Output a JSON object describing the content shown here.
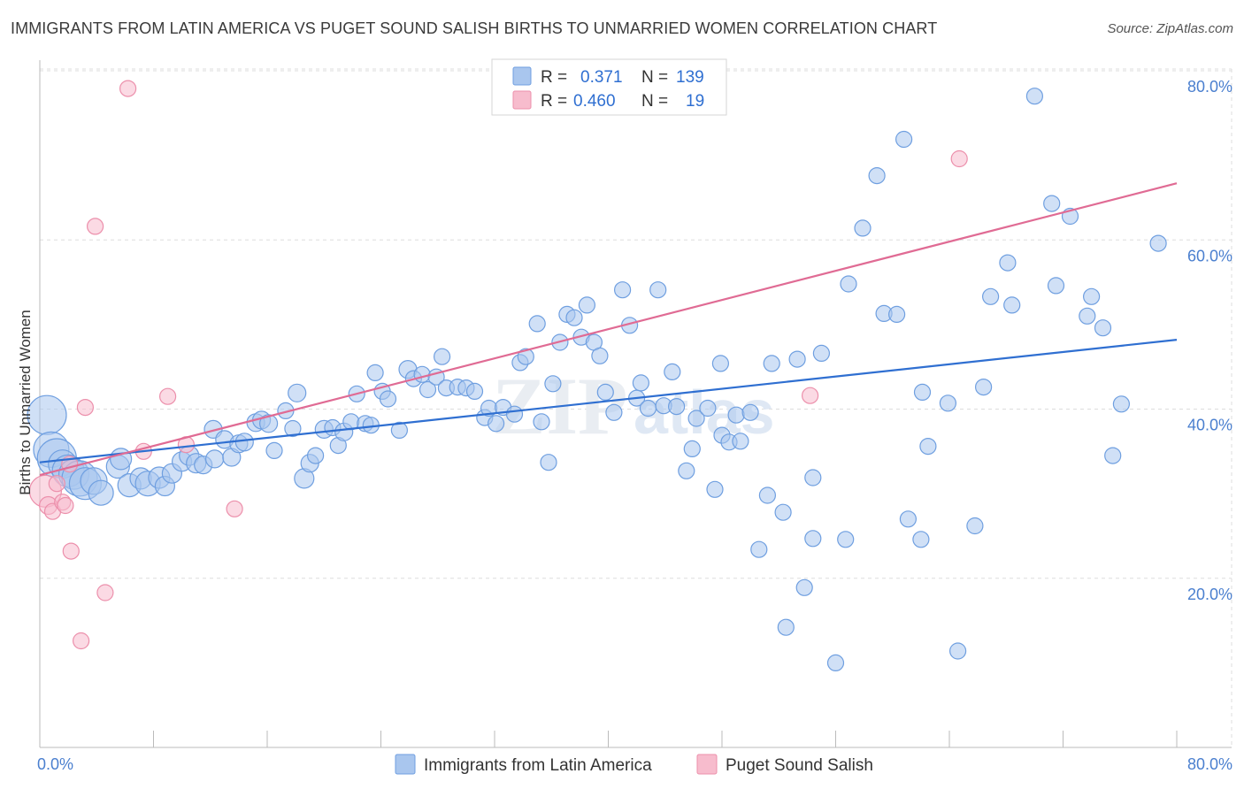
{
  "title": "IMMIGRANTS FROM LATIN AMERICA VS PUGET SOUND SALISH BIRTHS TO UNMARRIED WOMEN CORRELATION CHART",
  "source": "Source: ZipAtlas.com",
  "watermark": {
    "zip": "ZIP",
    "atlas": "atlas"
  },
  "colors": {
    "blue_fill": "#a9c6ee",
    "blue_stroke": "#6f9fe0",
    "blue_line": "#2f6fd1",
    "pink_fill": "#f7bccd",
    "pink_stroke": "#ec8fab",
    "pink_line": "#e06b94",
    "grid": "#dddddd",
    "tick_text": "#4a7fcf"
  },
  "legend": {
    "rows": [
      {
        "r_label": "R =",
        "r_value": "0.371",
        "n_label": "N =",
        "n_value": "139"
      },
      {
        "r_label": "R =",
        "r_value": "0.460",
        "n_label": "N =",
        "n_value": "19"
      }
    ]
  },
  "bottom_legend": [
    "Immigrants from Latin America",
    "Puget Sound Salish"
  ],
  "chart_data": {
    "type": "scatter",
    "title": "IMMIGRANTS FROM LATIN AMERICA VS PUGET SOUND SALISH BIRTHS TO UNMARRIED WOMEN CORRELATION CHART",
    "xlabel": "",
    "ylabel": "Births to Unmarried Women",
    "xlim": [
      0,
      80
    ],
    "ylim": [
      0,
      82
    ],
    "x_tick_labels": [
      "0.0%",
      "80.0%"
    ],
    "y_ticks": [
      20,
      40,
      60,
      80
    ],
    "y_tick_labels": [
      "20.0%",
      "40.0%",
      "60.0%",
      "80.0%"
    ],
    "grid": true,
    "legend_position": "top-center",
    "series": [
      {
        "name": "Immigrants from Latin America",
        "color": "#a9c6ee",
        "stats": {
          "R": 0.371,
          "N": 139
        },
        "trend": {
          "x": [
            0,
            80
          ],
          "y": [
            33.7,
            48.2
          ]
        },
        "points": [
          [
            0.5,
            39.3,
            22
          ],
          [
            0.8,
            35.2,
            20
          ],
          [
            1.2,
            34.2,
            22
          ],
          [
            1.6,
            33.5,
            16
          ],
          [
            2.0,
            32.7,
            18
          ],
          [
            2.4,
            32.3,
            17
          ],
          [
            2.8,
            31.8,
            20
          ],
          [
            3.2,
            31.2,
            18
          ],
          [
            3.8,
            31.5,
            15
          ],
          [
            4.3,
            30.1,
            14
          ],
          [
            5.5,
            33.2,
            13
          ],
          [
            5.7,
            34.1,
            12
          ],
          [
            6.3,
            31.0,
            13
          ],
          [
            7.1,
            31.8,
            12
          ],
          [
            7.6,
            31.2,
            14
          ],
          [
            8.4,
            31.9,
            12
          ],
          [
            8.8,
            30.9,
            11
          ],
          [
            9.3,
            32.4,
            11
          ],
          [
            10.0,
            33.8,
            11
          ],
          [
            10.5,
            34.5,
            11
          ],
          [
            11.0,
            33.6,
            11
          ],
          [
            11.5,
            33.4,
            10
          ],
          [
            12.2,
            37.6,
            10
          ],
          [
            12.3,
            34.1,
            10
          ],
          [
            13.0,
            36.4,
            10
          ],
          [
            13.5,
            34.3,
            10
          ],
          [
            14.0,
            35.9,
            10
          ],
          [
            14.4,
            36.1,
            10
          ],
          [
            15.2,
            38.4,
            10
          ],
          [
            15.6,
            38.7,
            10
          ],
          [
            16.1,
            38.3,
            10
          ],
          [
            16.5,
            35.1,
            9
          ],
          [
            17.3,
            39.8,
            9
          ],
          [
            17.8,
            37.7,
            9
          ],
          [
            18.1,
            41.9,
            10
          ],
          [
            18.6,
            31.8,
            11
          ],
          [
            19.0,
            33.6,
            10
          ],
          [
            19.4,
            34.5,
            9
          ],
          [
            20.0,
            37.6,
            10
          ],
          [
            20.6,
            37.8,
            9
          ],
          [
            21.0,
            35.7,
            9
          ],
          [
            21.4,
            37.3,
            10
          ],
          [
            21.9,
            38.5,
            9
          ],
          [
            22.3,
            41.8,
            9
          ],
          [
            22.9,
            38.3,
            9
          ],
          [
            23.3,
            38.1,
            9
          ],
          [
            23.6,
            44.3,
            9
          ],
          [
            24.1,
            42.1,
            9
          ],
          [
            24.5,
            41.2,
            9
          ],
          [
            25.3,
            37.5,
            9
          ],
          [
            25.9,
            44.7,
            10
          ],
          [
            26.3,
            43.6,
            9
          ],
          [
            26.9,
            44.1,
            9
          ],
          [
            27.3,
            42.3,
            9
          ],
          [
            27.9,
            43.8,
            9
          ],
          [
            28.3,
            46.2,
            9
          ],
          [
            28.6,
            42.5,
            9
          ],
          [
            29.4,
            42.6,
            9
          ],
          [
            30.0,
            42.5,
            9
          ],
          [
            30.6,
            42.1,
            9
          ],
          [
            31.3,
            39.0,
            9
          ],
          [
            31.6,
            40.1,
            9
          ],
          [
            32.1,
            38.3,
            9
          ],
          [
            32.6,
            40.2,
            9
          ],
          [
            33.4,
            39.4,
            9
          ],
          [
            33.8,
            45.5,
            9
          ],
          [
            34.2,
            46.2,
            9
          ],
          [
            35.0,
            50.1,
            9
          ],
          [
            35.3,
            38.5,
            9
          ],
          [
            35.8,
            33.7,
            9
          ],
          [
            36.1,
            43.0,
            9
          ],
          [
            36.6,
            47.9,
            9
          ],
          [
            37.1,
            51.2,
            9
          ],
          [
            37.6,
            50.8,
            9
          ],
          [
            38.1,
            48.5,
            9
          ],
          [
            38.5,
            52.3,
            9
          ],
          [
            39.0,
            47.9,
            9
          ],
          [
            39.4,
            46.3,
            9
          ],
          [
            39.8,
            42.0,
            9
          ],
          [
            40.4,
            39.6,
            9
          ],
          [
            41.0,
            54.1,
            9
          ],
          [
            41.5,
            49.9,
            9
          ],
          [
            42.0,
            41.3,
            9
          ],
          [
            42.3,
            43.1,
            9
          ],
          [
            42.8,
            40.1,
            9
          ],
          [
            43.5,
            54.1,
            9
          ],
          [
            43.9,
            40.4,
            9
          ],
          [
            44.5,
            44.4,
            9
          ],
          [
            44.8,
            40.3,
            9
          ],
          [
            45.5,
            32.7,
            9
          ],
          [
            45.9,
            35.3,
            9
          ],
          [
            46.2,
            38.9,
            9
          ],
          [
            47.0,
            40.1,
            9
          ],
          [
            47.5,
            30.5,
            9
          ],
          [
            48.0,
            36.9,
            9
          ],
          [
            48.5,
            36.1,
            9
          ],
          [
            49.0,
            39.3,
            9
          ],
          [
            49.3,
            36.2,
            9
          ],
          [
            50.0,
            39.6,
            9
          ],
          [
            50.6,
            23.4,
            9
          ],
          [
            51.2,
            29.8,
            9
          ],
          [
            51.5,
            45.4,
            9
          ],
          [
            52.3,
            27.8,
            9
          ],
          [
            52.5,
            14.2,
            9
          ],
          [
            53.3,
            45.9,
            9
          ],
          [
            53.8,
            18.9,
            9
          ],
          [
            54.4,
            24.7,
            9
          ],
          [
            54.4,
            31.9,
            9
          ],
          [
            55.0,
            46.6,
            9
          ],
          [
            56.0,
            10.0,
            9
          ],
          [
            56.7,
            24.6,
            9
          ],
          [
            56.9,
            54.8,
            9
          ],
          [
            57.9,
            61.4,
            9
          ],
          [
            58.9,
            67.6,
            9
          ],
          [
            59.4,
            51.3,
            9
          ],
          [
            60.3,
            51.2,
            9
          ],
          [
            60.8,
            71.9,
            9
          ],
          [
            61.1,
            27.0,
            9
          ],
          [
            62.0,
            24.6,
            9
          ],
          [
            62.5,
            35.6,
            9
          ],
          [
            63.9,
            40.7,
            9
          ],
          [
            64.6,
            11.4,
            9
          ],
          [
            65.8,
            26.2,
            9
          ],
          [
            66.4,
            42.6,
            9
          ],
          [
            66.9,
            53.3,
            9
          ],
          [
            68.1,
            57.3,
            9
          ],
          [
            68.4,
            52.3,
            9
          ],
          [
            70.0,
            77.0,
            9
          ],
          [
            71.2,
            64.3,
            9
          ],
          [
            71.5,
            54.6,
            9
          ],
          [
            72.5,
            62.8,
            9
          ],
          [
            73.7,
            51.0,
            9
          ],
          [
            74.0,
            53.3,
            9
          ],
          [
            74.8,
            49.6,
            9
          ],
          [
            75.5,
            34.5,
            9
          ],
          [
            76.1,
            40.6,
            9
          ],
          [
            78.7,
            59.6,
            9
          ],
          [
            47.9,
            45.4,
            9
          ],
          [
            62.1,
            42.0,
            9
          ]
        ]
      },
      {
        "name": "Puget Sound Salish",
        "color": "#f7bccd",
        "stats": {
          "R": 0.46,
          "N": 19
        },
        "trend": {
          "x": [
            0,
            80
          ],
          "y": [
            32.2,
            66.7
          ]
        },
        "points": [
          [
            0.4,
            30.3,
            18
          ],
          [
            0.6,
            28.6,
            10
          ],
          [
            0.9,
            27.9,
            9
          ],
          [
            1.2,
            31.2,
            9
          ],
          [
            1.6,
            29.0,
            9
          ],
          [
            1.8,
            28.6,
            9
          ],
          [
            2.1,
            33.5,
            9
          ],
          [
            2.2,
            23.2,
            9
          ],
          [
            2.9,
            12.6,
            9
          ],
          [
            3.2,
            40.2,
            9
          ],
          [
            4.6,
            18.3,
            9
          ],
          [
            6.2,
            77.9,
            9
          ],
          [
            7.3,
            35.0,
            9
          ],
          [
            9.0,
            41.5,
            9
          ],
          [
            10.3,
            35.8,
            9
          ],
          [
            3.9,
            61.6,
            9
          ],
          [
            13.7,
            28.2,
            9
          ],
          [
            54.2,
            41.6,
            9
          ],
          [
            64.7,
            69.6,
            9
          ]
        ]
      }
    ]
  }
}
